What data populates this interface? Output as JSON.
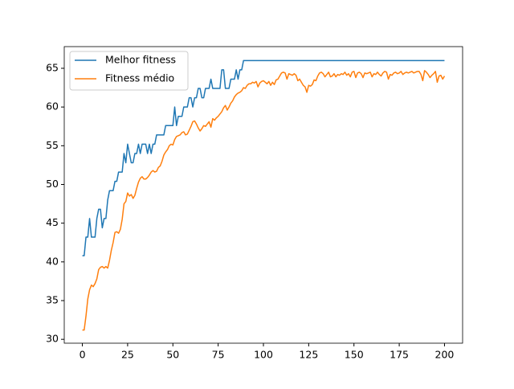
{
  "chart_data": {
    "type": "line",
    "x": [
      0,
      1,
      2,
      3,
      4,
      5,
      6,
      7,
      8,
      9,
      10,
      11,
      12,
      13,
      14,
      15,
      16,
      17,
      18,
      19,
      20,
      21,
      22,
      23,
      24,
      25,
      26,
      27,
      28,
      29,
      30,
      31,
      32,
      33,
      34,
      35,
      36,
      37,
      38,
      39,
      40,
      41,
      42,
      43,
      44,
      45,
      46,
      47,
      48,
      49,
      50,
      51,
      52,
      53,
      54,
      55,
      56,
      57,
      58,
      59,
      60,
      61,
      62,
      63,
      64,
      65,
      66,
      67,
      68,
      69,
      70,
      71,
      72,
      73,
      74,
      75,
      76,
      77,
      78,
      79,
      80,
      81,
      82,
      83,
      84,
      85,
      86,
      87,
      88,
      89,
      90,
      91,
      92,
      93,
      94,
      95,
      96,
      97,
      98,
      99,
      100,
      101,
      102,
      103,
      104,
      105,
      106,
      107,
      108,
      109,
      110,
      111,
      112,
      113,
      114,
      115,
      116,
      117,
      118,
      119,
      120,
      121,
      122,
      123,
      124,
      125,
      126,
      127,
      128,
      129,
      130,
      131,
      132,
      133,
      134,
      135,
      136,
      137,
      138,
      139,
      140,
      141,
      142,
      143,
      144,
      145,
      146,
      147,
      148,
      149,
      150,
      151,
      152,
      153,
      154,
      155,
      156,
      157,
      158,
      159,
      160,
      161,
      162,
      163,
      164,
      165,
      166,
      167,
      168,
      169,
      170,
      171,
      172,
      173,
      174,
      175,
      176,
      177,
      178,
      179,
      180,
      181,
      182,
      183,
      184,
      185,
      186,
      187,
      188,
      189,
      190,
      191,
      192,
      193,
      194,
      195,
      196,
      197,
      198,
      199,
      200
    ],
    "series": [
      {
        "name": "Melhor fitness",
        "color": "#1f77b4",
        "values": [
          40.8,
          40.8,
          43.2,
          43.2,
          45.6,
          43.2,
          43.2,
          43.2,
          45.6,
          46.8,
          46.8,
          44.4,
          45.6,
          45.6,
          48,
          49.2,
          49.2,
          49.2,
          50.4,
          50.4,
          51.6,
          51.6,
          51.6,
          54,
          52.8,
          55.2,
          54,
          52.8,
          52.8,
          54,
          54,
          55.2,
          54,
          55.2,
          55.2,
          55.2,
          54,
          55.2,
          54,
          55.2,
          55.2,
          56.4,
          56.4,
          56.4,
          56.4,
          56.4,
          57.6,
          57.6,
          57.6,
          57.6,
          57.6,
          60,
          57.6,
          58.8,
          58.8,
          58.8,
          60,
          60,
          60,
          61.2,
          61.2,
          60,
          61.2,
          61.2,
          62.4,
          62.4,
          61.2,
          61.2,
          62.4,
          62.4,
          62.4,
          63.6,
          62.4,
          62.4,
          62.4,
          62.4,
          62.4,
          64.8,
          64.8,
          62.4,
          62.4,
          62.4,
          63.6,
          63.6,
          63.6,
          64.8,
          63.6,
          64.8,
          64.8,
          66,
          66,
          66,
          66,
          66,
          66,
          66,
          66,
          66,
          66,
          66,
          66,
          66,
          66,
          66,
          66,
          66,
          66,
          66,
          66,
          66,
          66,
          66,
          66,
          66,
          66,
          66,
          66,
          66,
          66,
          66,
          66,
          66,
          66,
          66,
          66,
          66,
          66,
          66,
          66,
          66,
          66,
          66,
          66,
          66,
          66,
          66,
          66,
          66,
          66,
          66,
          66,
          66,
          66,
          66,
          66,
          66,
          66,
          66,
          66,
          66,
          66,
          66,
          66,
          66,
          66,
          66,
          66,
          66,
          66,
          66,
          66,
          66,
          66,
          66,
          66,
          66,
          66,
          66,
          66,
          66,
          66,
          66,
          66,
          66,
          66,
          66,
          66,
          66,
          66,
          66,
          66,
          66,
          66,
          66,
          66,
          66,
          66,
          66,
          66,
          66,
          66,
          66,
          66,
          66,
          66,
          66,
          66,
          66,
          66,
          66,
          66
        ]
      },
      {
        "name": "Fitness médio",
        "color": "#ff7f0e",
        "values": [
          31.2,
          31.2,
          33,
          35.2,
          36.4,
          37,
          36.8,
          37.2,
          37.8,
          39,
          39.3,
          39.4,
          39.2,
          39.4,
          39.2,
          40.2,
          41.5,
          42.5,
          43.8,
          43.9,
          43.7,
          44.2,
          45.5,
          47.5,
          47.8,
          48.9,
          48.5,
          48.7,
          48.2,
          48.6,
          49.5,
          50.3,
          50.8,
          51,
          50.7,
          50.7,
          50.9,
          51.2,
          51.6,
          51.8,
          51.6,
          51.7,
          52.2,
          52.4,
          53,
          53.8,
          54.2,
          54.5,
          55,
          55.2,
          55.1,
          55.8,
          56.2,
          56.3,
          56.4,
          56.7,
          56.8,
          56.4,
          56.5,
          57,
          57.5,
          58.1,
          58.2,
          57.8,
          57.3,
          56.9,
          57.2,
          57.6,
          57.5,
          57.8,
          58.1,
          57.4,
          58.5,
          58.3,
          58.6,
          58.8,
          59.1,
          59.4,
          59.9,
          60.2,
          59.6,
          60,
          60.5,
          60.8,
          61.3,
          61.6,
          61.8,
          61.9,
          62.1,
          62.5,
          62.4,
          62.8,
          63,
          63,
          63.2,
          63.1,
          63.3,
          62.6,
          63.1,
          63.3,
          63.4,
          63.2,
          63,
          63.3,
          62.8,
          63.2,
          62.9,
          63.5,
          63.6,
          64,
          64.4,
          64.5,
          64.4,
          63.6,
          64.3,
          64.2,
          64.1,
          64.3,
          64.1,
          63.4,
          63.6,
          63.2,
          62.8,
          62.6,
          61.9,
          62.8,
          62.7,
          62.9,
          63.5,
          63.4,
          64,
          64.4,
          64.5,
          64.3,
          63.9,
          64.2,
          64.5,
          63.9,
          64,
          64.3,
          63.9,
          64.2,
          64.1,
          64.3,
          64.2,
          64.5,
          64.1,
          64.3,
          63.9,
          64.5,
          64.6,
          63.8,
          64.4,
          64.5,
          64.3,
          63.8,
          64.4,
          64.3,
          64.4,
          64.5,
          63.9,
          64.3,
          64.2,
          64.5,
          64.2,
          64,
          64.4,
          64.6,
          64.5,
          63.6,
          64.2,
          64.1,
          64.4,
          64.5,
          64.3,
          64.4,
          64.6,
          64.2,
          64.4,
          64.5,
          64.4,
          64.5,
          64.6,
          64.4,
          64.5,
          64.6,
          64.6,
          64.2,
          63.4,
          64.7,
          64.5,
          64.2,
          63.8,
          64.1,
          64.3,
          64.6,
          63.2,
          64,
          64.1,
          63.6,
          64
        ]
      }
    ],
    "xlim": [
      -10,
      210
    ],
    "ylim": [
      29.5,
      67.8
    ],
    "xticks": [
      0,
      25,
      50,
      75,
      100,
      125,
      150,
      175,
      200
    ],
    "yticks": [
      30,
      35,
      40,
      45,
      50,
      55,
      60,
      65
    ],
    "legend": "upper left"
  }
}
